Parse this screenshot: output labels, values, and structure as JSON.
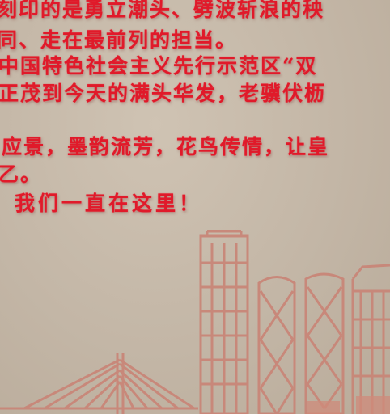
{
  "wall_text": {
    "line1": "刻印的是勇立潮头、劈波斩浪的秧",
    "line2": "同、走在最前列的担当。",
    "line3": "中国特色社会主义先行示范区“双",
    "line4": "正茂到今天的满头华发，老骥伏枥",
    "line5": "应景，墨韵流芳，花鸟传情，让皇",
    "line6": "乙。",
    "line7": "我们一直在这里！"
  },
  "colors": {
    "text_red": "#e01a2a",
    "building_stroke": "#c98476",
    "building_fill": "#cf8b7b"
  }
}
